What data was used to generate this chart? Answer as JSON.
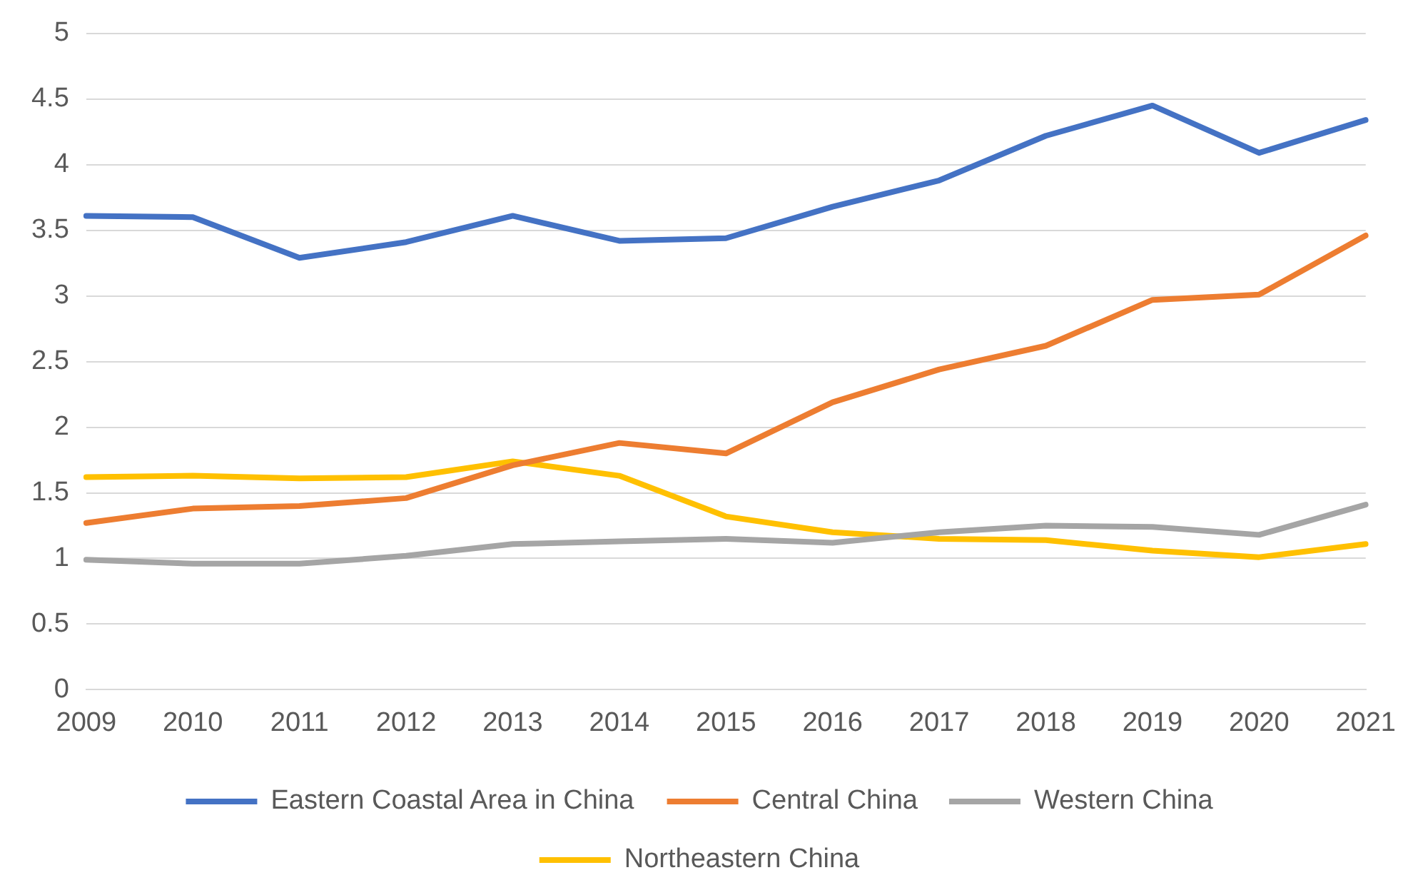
{
  "chart_data": {
    "type": "line",
    "categories": [
      "2009",
      "2010",
      "2011",
      "2012",
      "2013",
      "2014",
      "2015",
      "2016",
      "2017",
      "2018",
      "2019",
      "2020",
      "2021"
    ],
    "series": [
      {
        "name": "Eastern Coastal Area in China",
        "color": "#4472c4",
        "values": [
          3.61,
          3.6,
          3.29,
          3.41,
          3.61,
          3.42,
          3.44,
          3.68,
          3.88,
          4.22,
          4.45,
          4.09,
          4.34
        ]
      },
      {
        "name": "Central China",
        "color": "#ed7d31",
        "values": [
          1.27,
          1.38,
          1.4,
          1.46,
          1.71,
          1.88,
          1.8,
          2.19,
          2.44,
          2.62,
          2.97,
          3.01,
          3.46
        ]
      },
      {
        "name": "Western China",
        "color": "#a5a5a5",
        "values": [
          0.99,
          0.96,
          0.96,
          1.02,
          1.11,
          1.13,
          1.15,
          1.12,
          1.2,
          1.25,
          1.24,
          1.18,
          1.41
        ]
      },
      {
        "name": "Northeastern China",
        "color": "#ffc000",
        "values": [
          1.62,
          1.63,
          1.61,
          1.62,
          1.74,
          1.63,
          1.32,
          1.2,
          1.15,
          1.14,
          1.06,
          1.01,
          1.11
        ]
      }
    ],
    "ylim": [
      0,
      5
    ],
    "yticks": [
      0,
      0.5,
      1,
      1.5,
      2,
      2.5,
      3,
      3.5,
      4,
      4.5,
      5
    ],
    "grid": "y",
    "legend": "bottom",
    "marker": "none",
    "line_style": "solid"
  }
}
